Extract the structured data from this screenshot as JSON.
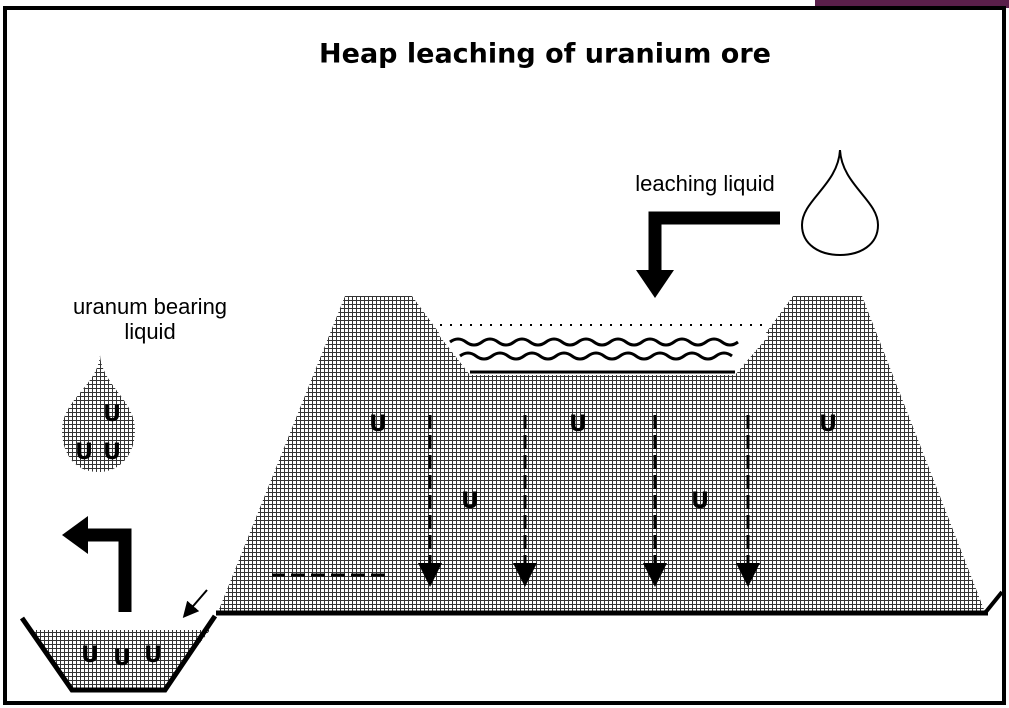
{
  "title": "Heap leaching of uranium ore",
  "labels": {
    "leaching": "leaching liquid",
    "bearing_line1": "uranum bearing",
    "bearing_line2": "liquid"
  },
  "heap_marks": [
    "U",
    "U",
    "U",
    "U",
    "U"
  ],
  "drop_marks": [
    "U",
    "U",
    "U"
  ],
  "pool_marks": [
    "U",
    "U",
    "U"
  ]
}
